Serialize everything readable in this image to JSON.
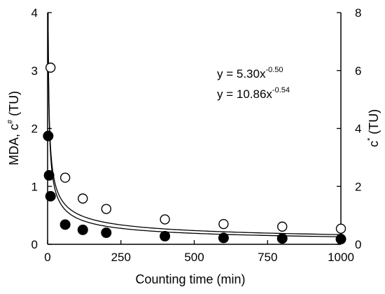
{
  "chart_data": {
    "type": "scatter",
    "xlabel": "Counting time (min)",
    "ylabel_left": {
      "main": "MDA, c",
      "sup": "#",
      "unit": " (TU)"
    },
    "ylabel_right": {
      "main": "c",
      "sup": "*",
      "unit": " (TU)"
    },
    "xlim": [
      0,
      1000
    ],
    "ylim_left": [
      0,
      4
    ],
    "ylim_right": [
      0,
      8
    ],
    "x_ticks": [
      0,
      250,
      500,
      750,
      1000
    ],
    "y_left_ticks": [
      0,
      1,
      2,
      3,
      4
    ],
    "y_right_ticks": [
      0,
      2,
      4,
      6,
      8
    ],
    "grid": false,
    "series": [
      {
        "marker": "open-circle",
        "axis": "right",
        "x": [
          10,
          60,
          120,
          200,
          400,
          600,
          800,
          1000
        ],
        "y": [
          6.1,
          2.3,
          1.58,
          1.22,
          0.86,
          0.7,
          0.61,
          0.54
        ],
        "fit": {
          "a": 10.86,
          "b": -0.54
        }
      },
      {
        "marker": "filled-circle",
        "axis": "left",
        "x": [
          2,
          5,
          10,
          60,
          120,
          200,
          400,
          600,
          800,
          1000
        ],
        "y": [
          1.87,
          1.19,
          0.83,
          0.34,
          0.25,
          0.2,
          0.14,
          0.11,
          0.1,
          0.09
        ],
        "fit": {
          "a": 5.3,
          "b": -0.5
        }
      }
    ],
    "annotations": [
      {
        "prefix": "y = ",
        "coef": "5.30",
        "sup": "-0.50"
      },
      {
        "prefix": "y = ",
        "coef": "10.86",
        "sup": "-0.54"
      }
    ]
  }
}
